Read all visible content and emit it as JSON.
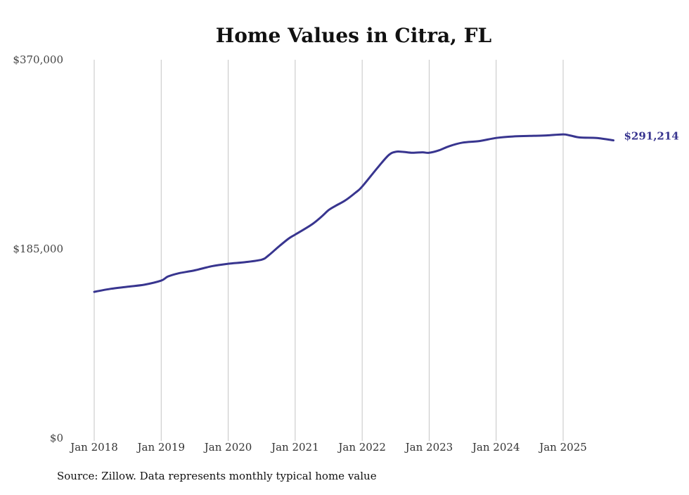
{
  "chart_data": {
    "type": "line",
    "title": "Home Values in Citra, FL",
    "xlabel": "",
    "ylabel": "",
    "ylim": [
      0,
      370000
    ],
    "y_ticks": [
      {
        "value": 0,
        "label": "$0"
      },
      {
        "value": 185000,
        "label": "$185,000"
      },
      {
        "value": 370000,
        "label": "$370,000"
      }
    ],
    "x_ticks": [
      {
        "value": 2018,
        "label": "Jan 2018"
      },
      {
        "value": 2019,
        "label": "Jan 2019"
      },
      {
        "value": 2020,
        "label": "Jan 2020"
      },
      {
        "value": 2021,
        "label": "Jan 2021"
      },
      {
        "value": 2022,
        "label": "Jan 2022"
      },
      {
        "value": 2023,
        "label": "Jan 2023"
      },
      {
        "value": 2024,
        "label": "Jan 2024"
      },
      {
        "value": 2025,
        "label": "Jan 2025"
      }
    ],
    "xlim": [
      2018,
      2025.75
    ],
    "grid": "vertical",
    "series": [
      {
        "name": "Typical home value",
        "color": "#38358f",
        "end_label": "$291,214",
        "x": [
          2018.0,
          2018.25,
          2018.5,
          2018.75,
          2019.0,
          2019.1,
          2019.25,
          2019.5,
          2019.75,
          2020.0,
          2020.25,
          2020.5,
          2020.6,
          2020.75,
          2020.9,
          2021.0,
          2021.25,
          2021.4,
          2021.5,
          2021.6,
          2021.75,
          2021.9,
          2022.0,
          2022.25,
          2022.4,
          2022.5,
          2022.6,
          2022.75,
          2022.9,
          2023.0,
          2023.15,
          2023.3,
          2023.5,
          2023.75,
          2024.0,
          2024.25,
          2024.5,
          2024.75,
          2025.0,
          2025.1,
          2025.25,
          2025.5,
          2025.75
        ],
        "values": [
          143000,
          146000,
          148000,
          150000,
          154000,
          158000,
          161000,
          164000,
          168000,
          170500,
          172000,
          174500,
          178500,
          187000,
          195000,
          199000,
          209000,
          217000,
          223000,
          227000,
          232500,
          240000,
          246000,
          266000,
          277000,
          280000,
          280000,
          279000,
          279500,
          279000,
          281500,
          285500,
          289000,
          290500,
          293500,
          295000,
          295500,
          296000,
          297000,
          296000,
          294000,
          293500,
          291214
        ]
      }
    ],
    "source": "Source: Zillow. Data represents monthly typical home value"
  }
}
